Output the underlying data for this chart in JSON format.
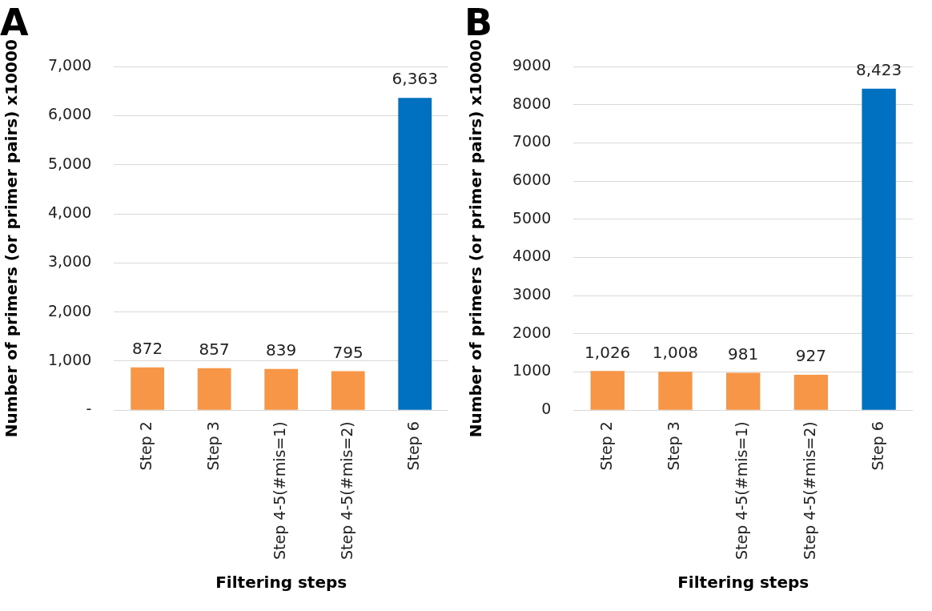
{
  "chart_data": [
    {
      "type": "bar",
      "title": "A",
      "xlabel": "Filtering steps",
      "ylabel": "Number of primers (or primer pairs) x10000",
      "categories": [
        "Step 2",
        "Step 3",
        "Step 4-5(#mis=1)",
        "Step 4-5(#mis=2)",
        "Step 6"
      ],
      "values": [
        872,
        857,
        839,
        795,
        6363
      ],
      "value_labels": [
        "872",
        "857",
        "839",
        "795",
        "6,363"
      ],
      "colors": [
        "#f79646",
        "#f79646",
        "#f79646",
        "#f79646",
        "#0070c0"
      ],
      "ylim": [
        0,
        7000
      ],
      "yticks": [
        {
          "value": 0,
          "label": "-"
        },
        {
          "value": 1000,
          "label": "1,000"
        },
        {
          "value": 2000,
          "label": "2,000"
        },
        {
          "value": 3000,
          "label": "3,000"
        },
        {
          "value": 4000,
          "label": "4,000"
        },
        {
          "value": 5000,
          "label": "5,000"
        },
        {
          "value": 6000,
          "label": "6,000"
        },
        {
          "value": 7000,
          "label": "7,000"
        }
      ],
      "grid": "y",
      "legend": false
    },
    {
      "type": "bar",
      "title": "B",
      "xlabel": "Filtering steps",
      "ylabel": "Number of primers (or primer pairs) x10000",
      "categories": [
        "Step 2",
        "Step 3",
        "Step 4-5(#mis=1)",
        "Step 4-5(#mis=2)",
        "Step 6"
      ],
      "values": [
        1026,
        1008,
        981,
        927,
        8423
      ],
      "value_labels": [
        "1,026",
        "1,008",
        "981",
        "927",
        "8,423"
      ],
      "colors": [
        "#f79646",
        "#f79646",
        "#f79646",
        "#f79646",
        "#0070c0"
      ],
      "ylim": [
        0,
        9000
      ],
      "yticks": [
        0,
        1000,
        2000,
        3000,
        4000,
        5000,
        6000,
        7000,
        8000,
        9000
      ],
      "grid": "y",
      "legend": false
    }
  ]
}
